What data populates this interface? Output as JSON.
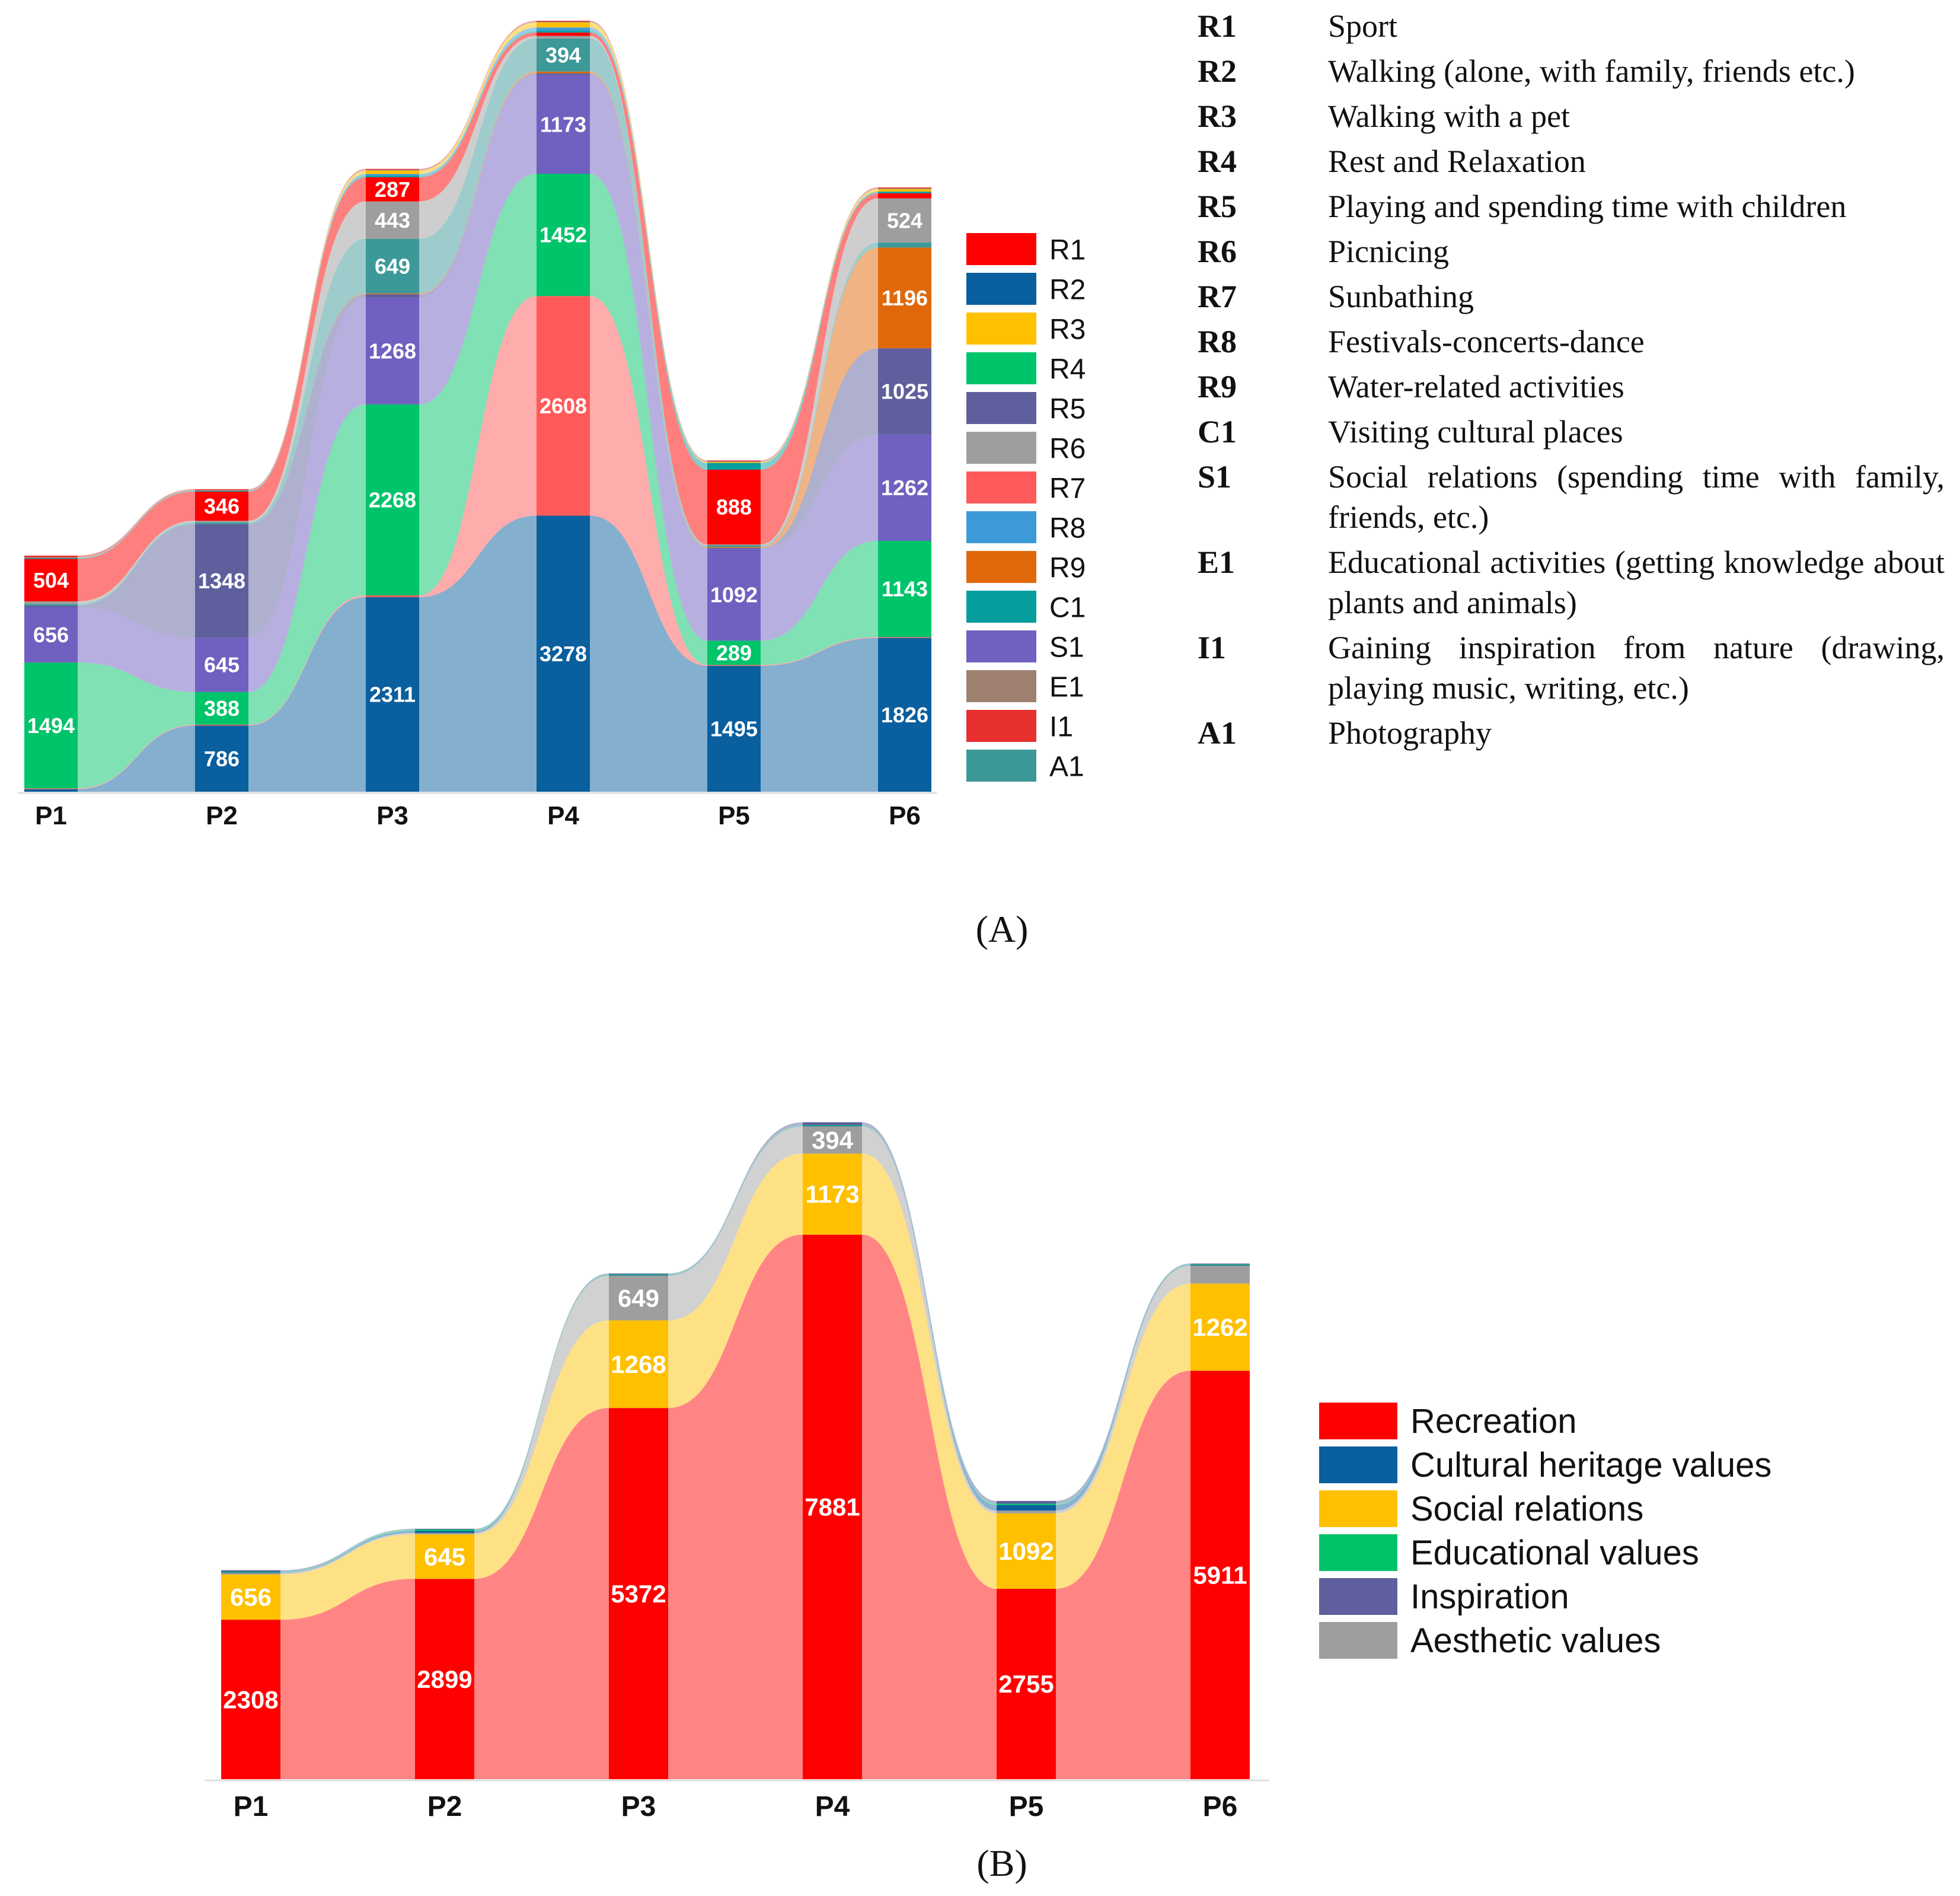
{
  "panels": {
    "a_label": "(A)",
    "b_label": "(B)"
  },
  "activity_definitions": [
    {
      "code": "R1",
      "text": "Sport"
    },
    {
      "code": "R2",
      "text": "Walking (alone, with family, friends etc.)"
    },
    {
      "code": "R3",
      "text": "Walking with a pet"
    },
    {
      "code": "R4",
      "text": "Rest and Relaxation"
    },
    {
      "code": "R5",
      "text": "Playing and spending time with children"
    },
    {
      "code": "R6",
      "text": "Picnicing"
    },
    {
      "code": "R7",
      "text": "Sunbathing"
    },
    {
      "code": "R8",
      "text": "Festivals-concerts-dance"
    },
    {
      "code": "R9",
      "text": "Water-related activities"
    },
    {
      "code": "C1",
      "text": "Visiting cultural places"
    },
    {
      "code": "S1",
      "text": "Social relations (spending time with family, friends, etc.)"
    },
    {
      "code": "E1",
      "text": "Educational activities (getting knowledge about plants and animals)"
    },
    {
      "code": "I1",
      "text": "Gaining inspiration from nature (drawing, playing music, writing, etc.)"
    },
    {
      "code": "A1",
      "text": "Photography"
    }
  ],
  "chart_data": [
    {
      "type": "area",
      "subtype": "stacked-stream",
      "panel": "A",
      "categories": [
        "P1",
        "P2",
        "P3",
        "P4",
        "P5",
        "P6"
      ],
      "legend_position": "right",
      "series": [
        {
          "name": "R1",
          "color": "#ff0000",
          "values": [
            504,
            346,
            287,
            40,
            888,
            60
          ]
        },
        {
          "name": "R2",
          "color": "#0a5f9e",
          "values": [
            30,
            786,
            2311,
            3278,
            1495,
            1826
          ]
        },
        {
          "name": "R3",
          "color": "#ffc000",
          "values": [
            0,
            0,
            40,
            60,
            10,
            30
          ]
        },
        {
          "name": "R4",
          "color": "#00c46a",
          "values": [
            1494,
            388,
            2268,
            1452,
            289,
            1143
          ]
        },
        {
          "name": "R5",
          "color": "#5f5f9e",
          "values": [
            20,
            1348,
            40,
            20,
            10,
            1025
          ]
        },
        {
          "name": "R6",
          "color": "#9e9e9e",
          "values": [
            30,
            20,
            443,
            30,
            10,
            524
          ]
        },
        {
          "name": "R7",
          "color": "#ff5a5a",
          "values": [
            10,
            10,
            20,
            2608,
            10,
            10
          ]
        },
        {
          "name": "R8",
          "color": "#3c9bd6",
          "values": [
            0,
            0,
            20,
            40,
            0,
            0
          ]
        },
        {
          "name": "R9",
          "color": "#e0680a",
          "values": [
            0,
            0,
            10,
            20,
            10,
            1196
          ]
        },
        {
          "name": "C1",
          "color": "#069d9d",
          "values": [
            10,
            10,
            20,
            20,
            80,
            20
          ]
        },
        {
          "name": "S1",
          "color": "#7060c0",
          "values": [
            656,
            645,
            1268,
            1173,
            1092,
            1262
          ]
        },
        {
          "name": "E1",
          "color": "#9e8070",
          "values": [
            10,
            10,
            10,
            10,
            10,
            10
          ]
        },
        {
          "name": "I1",
          "color": "#e83030",
          "values": [
            20,
            10,
            10,
            10,
            10,
            10
          ]
        },
        {
          "name": "A1",
          "color": "#3d9898",
          "values": [
            20,
            20,
            649,
            394,
            20,
            60
          ]
        }
      ],
      "stack_order": [
        "R2",
        "R7",
        "R4",
        "S1",
        "R5",
        "R9",
        "A1",
        "R6",
        "R1",
        "C1",
        "R8",
        "R3",
        "E1",
        "I1"
      ],
      "data_labels": [
        {
          "category": "P1",
          "series": "R4",
          "text": "1494"
        },
        {
          "category": "P1",
          "series": "S1",
          "text": "656"
        },
        {
          "category": "P1",
          "series": "R1",
          "text": "504"
        },
        {
          "category": "P2",
          "series": "R5",
          "text": "1348"
        },
        {
          "category": "P2",
          "series": "R2",
          "text": "786"
        },
        {
          "category": "P2",
          "series": "S1",
          "text": "645"
        },
        {
          "category": "P2",
          "series": "R4",
          "text": "388"
        },
        {
          "category": "P2",
          "series": "R1",
          "text": "346"
        },
        {
          "category": "P3",
          "series": "R2",
          "text": "2311"
        },
        {
          "category": "P3",
          "series": "R4",
          "text": "2268"
        },
        {
          "category": "P3",
          "series": "S1",
          "text": "1268"
        },
        {
          "category": "P3",
          "series": "A1",
          "text": "649"
        },
        {
          "category": "P3",
          "series": "R6",
          "text": "443"
        },
        {
          "category": "P3",
          "series": "R1",
          "text": "287"
        },
        {
          "category": "P4",
          "series": "R2",
          "text": "3278"
        },
        {
          "category": "P4",
          "series": "R7",
          "text": "2608"
        },
        {
          "category": "P4",
          "series": "R4",
          "text": "1452"
        },
        {
          "category": "P4",
          "series": "S1",
          "text": "1173"
        },
        {
          "category": "P4",
          "series": "A1",
          "text": "394"
        },
        {
          "category": "P5",
          "series": "R2",
          "text": "1495"
        },
        {
          "category": "P5",
          "series": "S1",
          "text": "1092"
        },
        {
          "category": "P5",
          "series": "R1",
          "text": "888"
        },
        {
          "category": "P5",
          "series": "R4",
          "text": "289"
        },
        {
          "category": "P6",
          "series": "R2",
          "text": "1826"
        },
        {
          "category": "P6",
          "series": "S1",
          "text": "1262"
        },
        {
          "category": "P6",
          "series": "R9",
          "text": "1196"
        },
        {
          "category": "P6",
          "series": "R4",
          "text": "1143"
        },
        {
          "category": "P6",
          "series": "R5",
          "text": "1025"
        },
        {
          "category": "P6",
          "series": "R6",
          "text": "524"
        }
      ]
    },
    {
      "type": "area",
      "subtype": "stacked-stream",
      "panel": "B",
      "categories": [
        "P1",
        "P2",
        "P3",
        "P4",
        "P5",
        "P6"
      ],
      "legend_position": "right",
      "series": [
        {
          "name": "Recreation",
          "color": "#ff0000",
          "values": [
            2308,
            2899,
            5372,
            7881,
            2755,
            5911
          ]
        },
        {
          "name": "Cultural heritage values",
          "color": "#0a5f9e",
          "values": [
            10,
            30,
            10,
            10,
            80,
            10
          ]
        },
        {
          "name": "Social relations",
          "color": "#ffc000",
          "values": [
            656,
            645,
            1268,
            1173,
            1092,
            1262
          ]
        },
        {
          "name": "Educational values",
          "color": "#00c46a",
          "values": [
            10,
            20,
            10,
            10,
            20,
            10
          ]
        },
        {
          "name": "Inspiration",
          "color": "#5f5f9e",
          "values": [
            20,
            10,
            10,
            40,
            40,
            10
          ]
        },
        {
          "name": "Aesthetic values",
          "color": "#9e9e9e",
          "values": [
            20,
            20,
            649,
            394,
            40,
            260
          ]
        }
      ],
      "stack_order": [
        "Recreation",
        "Social relations",
        "Aesthetic values",
        "Cultural heritage values",
        "Educational values",
        "Inspiration"
      ],
      "data_labels": [
        {
          "category": "P1",
          "series": "Recreation",
          "text": "2308"
        },
        {
          "category": "P1",
          "series": "Social relations",
          "text": "656"
        },
        {
          "category": "P2",
          "series": "Recreation",
          "text": "2899"
        },
        {
          "category": "P2",
          "series": "Social relations",
          "text": "645"
        },
        {
          "category": "P3",
          "series": "Recreation",
          "text": "5372"
        },
        {
          "category": "P3",
          "series": "Social relations",
          "text": "1268"
        },
        {
          "category": "P3",
          "series": "Aesthetic values",
          "text": "649"
        },
        {
          "category": "P4",
          "series": "Recreation",
          "text": "7881"
        },
        {
          "category": "P4",
          "series": "Social relations",
          "text": "1173"
        },
        {
          "category": "P4",
          "series": "Aesthetic values",
          "text": "394"
        },
        {
          "category": "P5",
          "series": "Recreation",
          "text": "2755"
        },
        {
          "category": "P5",
          "series": "Social relations",
          "text": "1092"
        },
        {
          "category": "P6",
          "series": "Recreation",
          "text": "5911"
        },
        {
          "category": "P6",
          "series": "Social relations",
          "text": "1262"
        }
      ]
    }
  ]
}
